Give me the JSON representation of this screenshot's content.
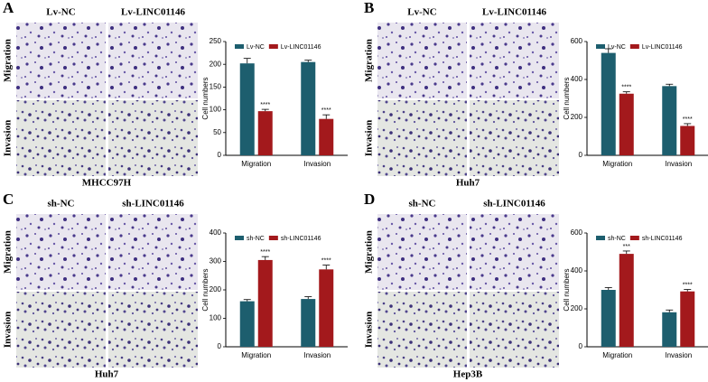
{
  "chart_data": [
    {
      "type": "bar",
      "panel_label": "A",
      "image_columns": [
        "Lv-NC",
        "Lv-LINC01146"
      ],
      "image_rows": [
        "Migration",
        "Invasion"
      ],
      "cell_line": "MHCC97H",
      "y_label": "Cell numbers",
      "categories": [
        "Migration",
        "Invasion"
      ],
      "ylim": [
        0,
        250
      ],
      "yticks": [
        0,
        50,
        100,
        150,
        200,
        250
      ],
      "legend": "top",
      "series": [
        {
          "name": "Lv-NC",
          "color": "#1d5e6e",
          "values": [
            202,
            205
          ],
          "errors": [
            11,
            4
          ]
        },
        {
          "name": "Lv-LINC01146",
          "color": "#a3191c",
          "values": [
            97,
            80
          ],
          "errors": [
            4,
            9
          ],
          "significance": [
            "****",
            "****"
          ]
        }
      ]
    },
    {
      "type": "bar",
      "panel_label": "B",
      "image_columns": [
        "Lv-NC",
        "Lv-LINC01146"
      ],
      "image_rows": [
        "Migration",
        "Invasion"
      ],
      "cell_line": "Huh7",
      "y_label": "Cell numbers",
      "categories": [
        "Migration",
        "Invasion"
      ],
      "ylim": [
        0,
        600
      ],
      "yticks": [
        0,
        200,
        400,
        600
      ],
      "legend": "top",
      "series": [
        {
          "name": "Lv-NC",
          "color": "#1d5e6e",
          "values": [
            540,
            365
          ],
          "errors": [
            22,
            10
          ]
        },
        {
          "name": "Lv-LINC01146",
          "color": "#a3191c",
          "values": [
            325,
            155
          ],
          "errors": [
            10,
            12
          ],
          "significance": [
            "****",
            "****"
          ]
        }
      ]
    },
    {
      "type": "bar",
      "panel_label": "C",
      "image_columns": [
        "sh-NC",
        "sh-LINC01146"
      ],
      "image_rows": [
        "Migration",
        "Invasion"
      ],
      "cell_line": "Huh7",
      "y_label": "Cell numbers",
      "categories": [
        "Migration",
        "Invasion"
      ],
      "ylim": [
        0,
        400
      ],
      "yticks": [
        0,
        100,
        200,
        300,
        400
      ],
      "legend": "top",
      "series": [
        {
          "name": "sh-NC",
          "color": "#1d5e6e",
          "values": [
            160,
            168
          ],
          "errors": [
            6,
            8
          ]
        },
        {
          "name": "sh-LINC01146",
          "color": "#a3191c",
          "values": [
            305,
            272
          ],
          "errors": [
            12,
            15
          ],
          "significance": [
            "****",
            "****"
          ]
        }
      ]
    },
    {
      "type": "bar",
      "panel_label": "D",
      "image_columns": [
        "sh-NC",
        "sh-LINC01146"
      ],
      "image_rows": [
        "Migration",
        "Invasion"
      ],
      "cell_line": "Hep3B",
      "y_label": "Cell numbers",
      "categories": [
        "Migration",
        "Invasion"
      ],
      "ylim": [
        0,
        600
      ],
      "yticks": [
        0,
        200,
        400,
        600
      ],
      "legend": "top",
      "series": [
        {
          "name": "sh-NC",
          "color": "#1d5e6e",
          "values": [
            300,
            182
          ],
          "errors": [
            12,
            12
          ]
        },
        {
          "name": "sh-LINC01146",
          "color": "#a3191c",
          "values": [
            490,
            292
          ],
          "errors": [
            15,
            10
          ],
          "significance": [
            "***",
            "****"
          ]
        }
      ]
    }
  ]
}
